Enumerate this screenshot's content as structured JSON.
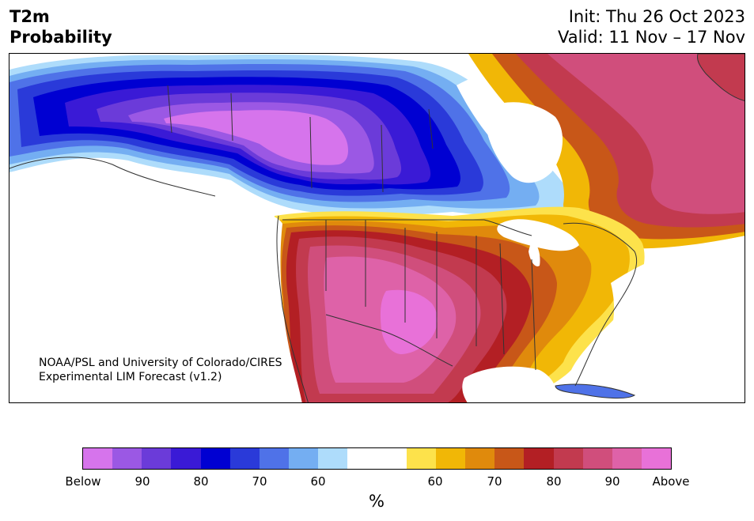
{
  "header": {
    "title_line1": "T2m",
    "title_line2": "Probability",
    "init": "Init: Thu 26 Oct 2023",
    "valid": "Valid: 11 Nov – 17 Nov"
  },
  "credit": {
    "line1": "NOAA/PSL and University of Colorado/CIRES",
    "line2": "Experimental LIM Forecast (v1.2)"
  },
  "colorbar": {
    "unit": "%",
    "colors": [
      "#d674ec",
      "#9b58e4",
      "#6b3bd9",
      "#3a1ad6",
      "#0000d2",
      "#2a3ad9",
      "#4f72e8",
      "#74aef2",
      "#aedcfb",
      "#ffffff",
      "#ffffff",
      "#fde24b",
      "#f1b706",
      "#e08a0c",
      "#c85718",
      "#b31f24",
      "#c23a4f",
      "#d04e7c",
      "#de62a8",
      "#e871d8"
    ],
    "ticks": [
      {
        "label": "Below"
      },
      {
        "label": "90"
      },
      {
        "label": "80"
      },
      {
        "label": "70"
      },
      {
        "label": "60"
      },
      {
        "label": "60"
      },
      {
        "label": "70"
      },
      {
        "label": "80"
      },
      {
        "label": "90"
      },
      {
        "label": "Above"
      }
    ]
  },
  "map": {
    "region": "North America",
    "colors": {
      "below_strong": "#d674ec",
      "below_90": "#9b58e4",
      "below_85": "#6b3bd9",
      "below_80": "#3a1ad6",
      "below_75": "#0000d2",
      "below_70": "#2a3ad9",
      "below_65": "#4f72e8",
      "below_60": "#74aef2",
      "below_55": "#aedcfb",
      "above_55": "#fde24b",
      "above_60": "#f1b706",
      "above_65": "#e08a0c",
      "above_70": "#c85718",
      "above_75": "#b31f24",
      "above_80": "#c23a4f",
      "above_85": "#d04e7c",
      "above_90": "#de62a8",
      "above_strong": "#e871d8"
    }
  }
}
